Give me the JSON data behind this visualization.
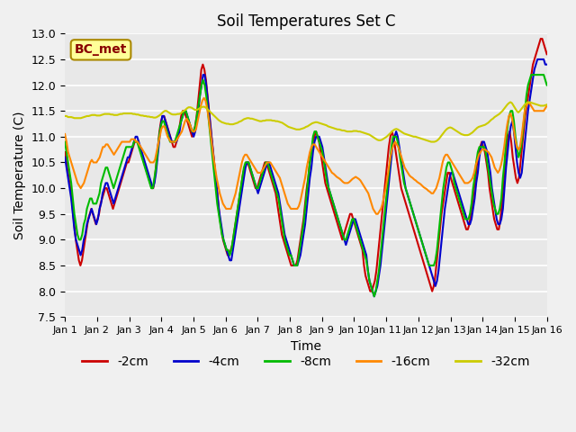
{
  "title": "Soil Temperatures Set C",
  "xlabel": "Time",
  "ylabel": "Soil Temperature (C)",
  "ylim": [
    7.5,
    13.0
  ],
  "xlim": [
    0,
    15
  ],
  "xtick_labels": [
    "Jan 1",
    "Jan 2",
    "Jan 3",
    "Jan 4",
    "Jan 5",
    "Jan 6",
    "Jan 7",
    "Jan 8",
    "Jan 9",
    "Jan 10",
    "Jan 11",
    "Jan 12",
    "Jan 13",
    "Jan 14",
    "Jan 15",
    "Jan 16"
  ],
  "ytick_values": [
    7.5,
    8.0,
    8.5,
    9.0,
    9.5,
    10.0,
    10.5,
    11.0,
    11.5,
    12.0,
    12.5,
    13.0
  ],
  "colors": {
    "2cm": "#cc0000",
    "4cm": "#0000cc",
    "8cm": "#00bb00",
    "16cm": "#ff8800",
    "32cm": "#cccc00"
  },
  "legend_labels": [
    "-2cm",
    "-4cm",
    "-8cm",
    "-16cm",
    "-32cm"
  ],
  "series_keys": [
    "2cm",
    "4cm",
    "8cm",
    "16cm",
    "32cm"
  ],
  "legend_label": "BC_met",
  "legend_box_color": "#ffff99",
  "legend_box_edge": "#aa8800",
  "series": {
    "2cm": [
      10.7,
      10.5,
      10.3,
      10.1,
      9.9,
      9.6,
      9.3,
      9.0,
      8.8,
      8.6,
      8.5,
      8.6,
      8.8,
      9.0,
      9.2,
      9.4,
      9.5,
      9.6,
      9.5,
      9.4,
      9.3,
      9.4,
      9.5,
      9.7,
      9.8,
      9.9,
      10.0,
      10.0,
      9.9,
      9.8,
      9.7,
      9.6,
      9.7,
      9.8,
      9.9,
      10.0,
      10.1,
      10.2,
      10.3,
      10.4,
      10.5,
      10.5,
      10.6,
      10.7,
      10.8,
      10.9,
      10.9,
      10.9,
      10.8,
      10.7,
      10.6,
      10.5,
      10.4,
      10.3,
      10.2,
      10.1,
      10.0,
      10.0,
      10.2,
      10.5,
      10.8,
      11.1,
      11.3,
      11.4,
      11.4,
      11.3,
      11.2,
      11.1,
      11.0,
      10.9,
      10.8,
      10.8,
      10.9,
      11.0,
      11.2,
      11.4,
      11.5,
      11.5,
      11.4,
      11.3,
      11.2,
      11.1,
      11.0,
      11.1,
      11.2,
      11.4,
      11.7,
      12.0,
      12.3,
      12.4,
      12.3,
      12.1,
      11.8,
      11.5,
      11.2,
      10.9,
      10.6,
      10.3,
      10.0,
      9.7,
      9.4,
      9.2,
      9.0,
      8.9,
      8.8,
      8.7,
      8.7,
      8.8,
      8.9,
      9.1,
      9.3,
      9.5,
      9.7,
      9.9,
      10.1,
      10.3,
      10.4,
      10.5,
      10.5,
      10.4,
      10.3,
      10.2,
      10.1,
      10.0,
      10.0,
      10.1,
      10.2,
      10.3,
      10.4,
      10.5,
      10.5,
      10.4,
      10.3,
      10.2,
      10.1,
      10.0,
      9.9,
      9.7,
      9.5,
      9.3,
      9.1,
      9.0,
      8.9,
      8.8,
      8.7,
      8.6,
      8.5,
      8.5,
      8.5,
      8.5,
      8.6,
      8.8,
      9.0,
      9.2,
      9.4,
      9.7,
      10.0,
      10.2,
      10.5,
      10.7,
      10.9,
      11.0,
      11.1,
      11.0,
      10.9,
      10.7,
      10.5,
      10.3,
      10.1,
      10.0,
      9.9,
      9.8,
      9.7,
      9.6,
      9.5,
      9.4,
      9.3,
      9.2,
      9.1,
      9.0,
      9.1,
      9.2,
      9.3,
      9.4,
      9.5,
      9.5,
      9.4,
      9.3,
      9.2,
      9.1,
      9.0,
      8.9,
      8.8,
      8.5,
      8.3,
      8.2,
      8.1,
      8.0,
      8.0,
      8.1,
      8.2,
      8.4,
      8.7,
      9.0,
      9.3,
      9.6,
      9.9,
      10.2,
      10.5,
      10.8,
      11.0,
      11.1,
      11.0,
      10.8,
      10.6,
      10.4,
      10.2,
      10.0,
      9.9,
      9.8,
      9.7,
      9.6,
      9.5,
      9.4,
      9.3,
      9.2,
      9.1,
      9.0,
      8.9,
      8.8,
      8.7,
      8.6,
      8.5,
      8.4,
      8.3,
      8.2,
      8.1,
      8.0,
      8.1,
      8.3,
      8.6,
      8.9,
      9.2,
      9.5,
      9.7,
      9.9,
      10.1,
      10.3,
      10.3,
      10.2,
      10.1,
      10.0,
      9.9,
      9.8,
      9.7,
      9.6,
      9.5,
      9.4,
      9.3,
      9.2,
      9.2,
      9.3,
      9.5,
      9.7,
      10.0,
      10.2,
      10.5,
      10.7,
      10.8,
      10.9,
      10.8,
      10.7,
      10.5,
      10.3,
      10.0,
      9.8,
      9.6,
      9.4,
      9.3,
      9.2,
      9.2,
      9.4,
      9.7,
      10.1,
      10.5,
      10.8,
      11.0,
      11.1,
      10.9,
      10.6,
      10.4,
      10.2,
      10.1,
      10.2,
      10.5,
      10.8,
      11.1,
      11.4,
      11.6,
      11.8,
      12.0,
      12.2,
      12.4,
      12.5,
      12.6,
      12.7,
      12.8,
      12.9,
      12.9,
      12.8,
      12.7,
      12.6
    ],
    "4cm": [
      10.6,
      10.4,
      10.2,
      10.0,
      9.8,
      9.5,
      9.2,
      9.0,
      8.9,
      8.8,
      8.7,
      8.8,
      9.0,
      9.1,
      9.3,
      9.4,
      9.5,
      9.6,
      9.5,
      9.4,
      9.3,
      9.4,
      9.6,
      9.7,
      9.9,
      10.0,
      10.1,
      10.1,
      10.0,
      9.9,
      9.8,
      9.7,
      9.8,
      9.9,
      10.0,
      10.1,
      10.2,
      10.3,
      10.4,
      10.5,
      10.6,
      10.6,
      10.7,
      10.8,
      10.9,
      11.0,
      11.0,
      10.9,
      10.8,
      10.7,
      10.6,
      10.5,
      10.4,
      10.3,
      10.2,
      10.1,
      10.0,
      10.1,
      10.3,
      10.6,
      10.9,
      11.2,
      11.4,
      11.4,
      11.3,
      11.2,
      11.1,
      11.0,
      10.9,
      10.9,
      10.9,
      10.9,
      11.0,
      11.1,
      11.3,
      11.4,
      11.5,
      11.5,
      11.4,
      11.3,
      11.2,
      11.1,
      11.0,
      11.1,
      11.3,
      11.5,
      11.8,
      12.0,
      12.2,
      12.2,
      12.0,
      11.7,
      11.4,
      11.1,
      10.8,
      10.5,
      10.2,
      9.9,
      9.6,
      9.4,
      9.2,
      9.0,
      8.9,
      8.8,
      8.7,
      8.6,
      8.6,
      8.8,
      9.0,
      9.2,
      9.4,
      9.6,
      9.8,
      10.0,
      10.2,
      10.4,
      10.5,
      10.5,
      10.4,
      10.3,
      10.2,
      10.1,
      10.0,
      9.9,
      10.0,
      10.1,
      10.2,
      10.3,
      10.4,
      10.5,
      10.5,
      10.4,
      10.3,
      10.2,
      10.1,
      10.0,
      9.9,
      9.7,
      9.5,
      9.3,
      9.1,
      9.0,
      8.9,
      8.8,
      8.7,
      8.6,
      8.5,
      8.5,
      8.5,
      8.6,
      8.7,
      8.9,
      9.1,
      9.3,
      9.6,
      9.9,
      10.2,
      10.4,
      10.7,
      10.9,
      11.0,
      11.0,
      11.0,
      10.9,
      10.8,
      10.6,
      10.4,
      10.2,
      10.0,
      9.9,
      9.8,
      9.7,
      9.6,
      9.5,
      9.4,
      9.3,
      9.2,
      9.1,
      9.0,
      8.9,
      9.0,
      9.1,
      9.2,
      9.3,
      9.4,
      9.4,
      9.3,
      9.2,
      9.1,
      9.0,
      8.9,
      8.8,
      8.7,
      8.4,
      8.2,
      8.1,
      8.0,
      7.9,
      8.0,
      8.1,
      8.3,
      8.5,
      8.8,
      9.1,
      9.4,
      9.7,
      10.0,
      10.3,
      10.6,
      10.9,
      11.0,
      11.1,
      11.0,
      10.8,
      10.6,
      10.4,
      10.2,
      10.0,
      9.9,
      9.8,
      9.7,
      9.6,
      9.5,
      9.4,
      9.3,
      9.2,
      9.1,
      9.0,
      8.9,
      8.8,
      8.7,
      8.6,
      8.5,
      8.4,
      8.3,
      8.2,
      8.1,
      8.2,
      8.4,
      8.7,
      9.0,
      9.3,
      9.6,
      9.8,
      10.0,
      10.2,
      10.3,
      10.3,
      10.2,
      10.1,
      10.0,
      9.9,
      9.8,
      9.7,
      9.6,
      9.5,
      9.4,
      9.3,
      9.3,
      9.4,
      9.6,
      9.8,
      10.1,
      10.3,
      10.6,
      10.8,
      10.9,
      10.9,
      10.8,
      10.7,
      10.5,
      10.3,
      10.0,
      9.8,
      9.6,
      9.4,
      9.3,
      9.3,
      9.4,
      9.6,
      10.0,
      10.4,
      10.7,
      11.0,
      11.2,
      11.3,
      11.1,
      10.8,
      10.5,
      10.3,
      10.2,
      10.3,
      10.6,
      10.9,
      11.2,
      11.5,
      11.7,
      11.9,
      12.1,
      12.3,
      12.4,
      12.5,
      12.5,
      12.5,
      12.5,
      12.5,
      12.4,
      12.4
    ],
    "8cm": [
      10.9,
      10.7,
      10.5,
      10.3,
      10.1,
      9.8,
      9.5,
      9.3,
      9.1,
      9.0,
      9.0,
      9.1,
      9.3,
      9.4,
      9.6,
      9.7,
      9.8,
      9.8,
      9.7,
      9.7,
      9.7,
      9.8,
      9.9,
      10.1,
      10.2,
      10.3,
      10.4,
      10.4,
      10.3,
      10.2,
      10.1,
      10.0,
      10.1,
      10.2,
      10.3,
      10.4,
      10.5,
      10.6,
      10.7,
      10.8,
      10.8,
      10.8,
      10.8,
      10.8,
      10.9,
      10.9,
      10.9,
      10.8,
      10.7,
      10.6,
      10.5,
      10.4,
      10.3,
      10.2,
      10.1,
      10.0,
      10.0,
      10.2,
      10.4,
      10.7,
      11.0,
      11.2,
      11.3,
      11.3,
      11.2,
      11.1,
      11.0,
      10.9,
      10.9,
      10.9,
      10.9,
      11.0,
      11.1,
      11.2,
      11.3,
      11.4,
      11.5,
      11.5,
      11.4,
      11.3,
      11.2,
      11.1,
      11.1,
      11.2,
      11.4,
      11.6,
      11.8,
      12.0,
      12.1,
      12.0,
      11.8,
      11.5,
      11.2,
      10.9,
      10.6,
      10.3,
      10.0,
      9.7,
      9.5,
      9.3,
      9.1,
      9.0,
      8.9,
      8.8,
      8.8,
      8.7,
      8.8,
      9.0,
      9.2,
      9.4,
      9.6,
      9.8,
      10.0,
      10.2,
      10.4,
      10.5,
      10.5,
      10.5,
      10.4,
      10.3,
      10.2,
      10.1,
      10.0,
      10.0,
      10.1,
      10.2,
      10.3,
      10.4,
      10.5,
      10.5,
      10.4,
      10.3,
      10.2,
      10.1,
      10.0,
      9.9,
      9.8,
      9.6,
      9.4,
      9.2,
      9.0,
      8.9,
      8.8,
      8.7,
      8.7,
      8.6,
      8.5,
      8.5,
      8.5,
      8.7,
      8.9,
      9.1,
      9.3,
      9.6,
      9.9,
      10.2,
      10.5,
      10.7,
      11.0,
      11.1,
      11.1,
      11.0,
      10.9,
      10.8,
      10.7,
      10.5,
      10.3,
      10.1,
      10.0,
      9.9,
      9.8,
      9.7,
      9.6,
      9.5,
      9.4,
      9.3,
      9.2,
      9.1,
      9.0,
      9.0,
      9.1,
      9.2,
      9.3,
      9.4,
      9.4,
      9.3,
      9.2,
      9.1,
      9.0,
      8.9,
      8.8,
      8.7,
      8.6,
      8.4,
      8.2,
      8.1,
      8.0,
      7.9,
      8.0,
      8.2,
      8.4,
      8.7,
      9.0,
      9.3,
      9.6,
      9.9,
      10.2,
      10.5,
      10.8,
      11.0,
      11.0,
      11.0,
      10.9,
      10.7,
      10.5,
      10.3,
      10.1,
      10.0,
      9.9,
      9.8,
      9.7,
      9.6,
      9.5,
      9.4,
      9.3,
      9.2,
      9.1,
      9.0,
      8.9,
      8.8,
      8.7,
      8.6,
      8.5,
      8.5,
      8.5,
      8.5,
      8.6,
      8.8,
      9.1,
      9.4,
      9.7,
      10.0,
      10.2,
      10.4,
      10.5,
      10.5,
      10.4,
      10.3,
      10.1,
      10.0,
      9.9,
      9.8,
      9.7,
      9.6,
      9.5,
      9.4,
      9.4,
      9.4,
      9.5,
      9.7,
      10.0,
      10.2,
      10.5,
      10.7,
      10.8,
      10.8,
      10.8,
      10.8,
      10.7,
      10.5,
      10.3,
      10.1,
      9.9,
      9.7,
      9.6,
      9.5,
      9.5,
      9.6,
      9.8,
      10.2,
      10.5,
      10.9,
      11.2,
      11.4,
      11.5,
      11.5,
      11.3,
      11.0,
      10.8,
      10.6,
      10.7,
      10.9,
      11.2,
      11.5,
      11.8,
      12.0,
      12.1,
      12.2,
      12.2,
      12.2,
      12.2,
      12.2,
      12.2,
      12.2,
      12.2,
      12.2,
      12.1,
      12.0
    ],
    "16cm": [
      11.05,
      10.9,
      10.7,
      10.6,
      10.5,
      10.4,
      10.3,
      10.2,
      10.1,
      10.05,
      10.0,
      10.05,
      10.1,
      10.2,
      10.3,
      10.4,
      10.5,
      10.55,
      10.5,
      10.5,
      10.5,
      10.55,
      10.6,
      10.7,
      10.8,
      10.8,
      10.85,
      10.85,
      10.8,
      10.75,
      10.7,
      10.65,
      10.7,
      10.75,
      10.8,
      10.85,
      10.9,
      10.9,
      10.9,
      10.9,
      10.9,
      10.9,
      10.95,
      10.95,
      10.95,
      10.9,
      10.9,
      10.85,
      10.8,
      10.75,
      10.7,
      10.65,
      10.6,
      10.55,
      10.5,
      10.5,
      10.5,
      10.55,
      10.7,
      10.85,
      11.0,
      11.15,
      11.2,
      11.2,
      11.1,
      11.0,
      10.95,
      10.9,
      10.9,
      10.9,
      10.9,
      10.95,
      11.0,
      11.05,
      11.1,
      11.2,
      11.3,
      11.35,
      11.3,
      11.25,
      11.15,
      11.1,
      11.1,
      11.15,
      11.3,
      11.45,
      11.6,
      11.7,
      11.75,
      11.7,
      11.55,
      11.35,
      11.1,
      10.85,
      10.6,
      10.4,
      10.2,
      10.05,
      9.9,
      9.8,
      9.7,
      9.65,
      9.6,
      9.6,
      9.6,
      9.6,
      9.7,
      9.8,
      9.9,
      10.05,
      10.2,
      10.35,
      10.5,
      10.6,
      10.65,
      10.65,
      10.6,
      10.55,
      10.5,
      10.45,
      10.4,
      10.35,
      10.3,
      10.3,
      10.3,
      10.35,
      10.4,
      10.45,
      10.5,
      10.5,
      10.5,
      10.45,
      10.4,
      10.35,
      10.3,
      10.25,
      10.2,
      10.1,
      10.0,
      9.9,
      9.8,
      9.7,
      9.65,
      9.6,
      9.6,
      9.6,
      9.6,
      9.6,
      9.65,
      9.75,
      9.9,
      10.05,
      10.2,
      10.4,
      10.55,
      10.7,
      10.8,
      10.85,
      10.85,
      10.8,
      10.75,
      10.7,
      10.65,
      10.6,
      10.55,
      10.5,
      10.45,
      10.4,
      10.35,
      10.3,
      10.28,
      10.25,
      10.22,
      10.2,
      10.18,
      10.15,
      10.12,
      10.1,
      10.1,
      10.1,
      10.12,
      10.15,
      10.18,
      10.2,
      10.22,
      10.2,
      10.18,
      10.15,
      10.1,
      10.05,
      10.0,
      9.95,
      9.9,
      9.8,
      9.7,
      9.6,
      9.55,
      9.5,
      9.5,
      9.55,
      9.6,
      9.7,
      9.85,
      10.0,
      10.2,
      10.4,
      10.6,
      10.75,
      10.85,
      10.9,
      10.85,
      10.8,
      10.7,
      10.6,
      10.5,
      10.4,
      10.35,
      10.3,
      10.25,
      10.22,
      10.2,
      10.17,
      10.15,
      10.12,
      10.1,
      10.08,
      10.05,
      10.02,
      10.0,
      9.98,
      9.95,
      9.93,
      9.9,
      9.9,
      9.95,
      10.0,
      10.1,
      10.2,
      10.35,
      10.5,
      10.6,
      10.65,
      10.65,
      10.6,
      10.55,
      10.5,
      10.45,
      10.4,
      10.35,
      10.3,
      10.25,
      10.2,
      10.15,
      10.1,
      10.1,
      10.1,
      10.12,
      10.15,
      10.2,
      10.3,
      10.45,
      10.55,
      10.65,
      10.7,
      10.75,
      10.75,
      10.75,
      10.72,
      10.7,
      10.65,
      10.6,
      10.5,
      10.4,
      10.35,
      10.3,
      10.35,
      10.45,
      10.6,
      10.8,
      11.05,
      11.25,
      11.4,
      11.45,
      11.35,
      11.15,
      10.95,
      10.8,
      10.75,
      10.8,
      11.0,
      11.25,
      11.5,
      11.6,
      11.65,
      11.65,
      11.6,
      11.55,
      11.5,
      11.5,
      11.5,
      11.5,
      11.5,
      11.5,
      11.5,
      11.55,
      11.6
    ],
    "32cm": [
      11.4,
      11.4,
      11.38,
      11.38,
      11.38,
      11.37,
      11.36,
      11.36,
      11.36,
      11.36,
      11.36,
      11.37,
      11.38,
      11.39,
      11.4,
      11.4,
      11.41,
      11.42,
      11.42,
      11.42,
      11.41,
      11.41,
      11.41,
      11.42,
      11.43,
      11.44,
      11.44,
      11.44,
      11.44,
      11.43,
      11.43,
      11.42,
      11.42,
      11.42,
      11.43,
      11.44,
      11.44,
      11.45,
      11.45,
      11.45,
      11.45,
      11.45,
      11.45,
      11.44,
      11.44,
      11.43,
      11.43,
      11.42,
      11.41,
      11.41,
      11.4,
      11.4,
      11.39,
      11.39,
      11.38,
      11.38,
      11.37,
      11.37,
      11.38,
      11.4,
      11.42,
      11.45,
      11.48,
      11.5,
      11.5,
      11.48,
      11.46,
      11.44,
      11.43,
      11.43,
      11.43,
      11.44,
      11.44,
      11.45,
      11.48,
      11.5,
      11.52,
      11.55,
      11.57,
      11.57,
      11.56,
      11.54,
      11.52,
      11.52,
      11.53,
      11.55,
      11.57,
      11.58,
      11.58,
      11.56,
      11.53,
      11.5,
      11.47,
      11.44,
      11.41,
      11.38,
      11.35,
      11.32,
      11.3,
      11.28,
      11.27,
      11.26,
      11.25,
      11.25,
      11.24,
      11.24,
      11.24,
      11.25,
      11.26,
      11.27,
      11.29,
      11.3,
      11.32,
      11.34,
      11.35,
      11.36,
      11.36,
      11.35,
      11.35,
      11.34,
      11.33,
      11.32,
      11.31,
      11.3,
      11.3,
      11.31,
      11.31,
      11.32,
      11.32,
      11.32,
      11.32,
      11.31,
      11.31,
      11.3,
      11.3,
      11.29,
      11.28,
      11.27,
      11.25,
      11.23,
      11.21,
      11.19,
      11.18,
      11.17,
      11.16,
      11.15,
      11.14,
      11.14,
      11.14,
      11.15,
      11.16,
      11.17,
      11.19,
      11.2,
      11.22,
      11.24,
      11.26,
      11.27,
      11.28,
      11.28,
      11.27,
      11.26,
      11.25,
      11.24,
      11.23,
      11.22,
      11.2,
      11.19,
      11.18,
      11.17,
      11.16,
      11.15,
      11.14,
      11.14,
      11.13,
      11.12,
      11.12,
      11.11,
      11.1,
      11.1,
      11.1,
      11.1,
      11.11,
      11.11,
      11.11,
      11.1,
      11.1,
      11.09,
      11.08,
      11.07,
      11.06,
      11.05,
      11.04,
      11.02,
      11.0,
      10.98,
      10.96,
      10.94,
      10.93,
      10.93,
      10.94,
      10.96,
      10.98,
      11.0,
      11.03,
      11.06,
      11.09,
      11.12,
      11.14,
      11.15,
      11.14,
      11.12,
      11.1,
      11.08,
      11.06,
      11.05,
      11.04,
      11.03,
      11.02,
      11.01,
      11.0,
      11.0,
      10.99,
      10.98,
      10.97,
      10.96,
      10.95,
      10.94,
      10.93,
      10.92,
      10.91,
      10.9,
      10.9,
      10.9,
      10.91,
      10.93,
      10.96,
      11.0,
      11.04,
      11.08,
      11.12,
      11.15,
      11.17,
      11.18,
      11.17,
      11.15,
      11.13,
      11.11,
      11.09,
      11.07,
      11.05,
      11.04,
      11.03,
      11.03,
      11.03,
      11.04,
      11.06,
      11.08,
      11.11,
      11.14,
      11.17,
      11.19,
      11.2,
      11.21,
      11.22,
      11.23,
      11.25,
      11.27,
      11.3,
      11.33,
      11.35,
      11.38,
      11.4,
      11.42,
      11.44,
      11.47,
      11.5,
      11.54,
      11.58,
      11.62,
      11.65,
      11.67,
      11.65,
      11.6,
      11.55,
      11.5,
      11.47,
      11.5,
      11.54,
      11.58,
      11.62,
      11.65,
      11.67,
      11.67,
      11.66,
      11.65,
      11.64,
      11.63,
      11.62,
      11.61,
      11.6,
      11.6,
      11.6,
      11.61,
      11.62
    ]
  }
}
